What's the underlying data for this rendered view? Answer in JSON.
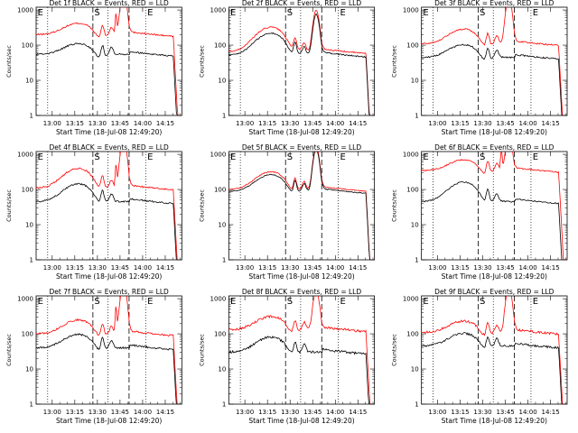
{
  "figure": {
    "xlabel_prefix": "Start Time",
    "start_time": "(18-Jul-08 12:49:20)",
    "ylabel": "Counts/sec"
  },
  "chart_data": [
    {
      "type": "line",
      "title": "Det 1f BLACK = Events, RED = LLD",
      "series": [
        {
          "name": "Events",
          "color": "#000000"
        },
        {
          "name": "LLD",
          "color": "#ff0000"
        }
      ],
      "profile": {
        "red_base": 200,
        "black_base": 55,
        "red_hump": 2.1,
        "black_hump": 2.0,
        "flare_red": 3000,
        "flare_black": null,
        "flare2_red": 600,
        "flare2_black": null,
        "noise": 0.05
      },
      "x_ticks": [
        "13:00",
        "13:15",
        "13:30",
        "13:45",
        "14:00",
        "14:15"
      ],
      "y_ticks": [
        "1",
        "10",
        "100",
        "1000"
      ],
      "xlim": [
        "12:49:20",
        "14:26"
      ],
      "ylim": [
        1,
        1200
      ],
      "ylog": true,
      "markers": {
        "dotted": [
          "12:57",
          "13:37",
          "14:02"
        ],
        "dashed": [
          "13:27",
          "13:51"
        ]
      },
      "marker_labels": [
        "E",
        "S",
        "E"
      ]
    },
    {
      "type": "line",
      "title": "Det 2f BLACK = Events, RED = LLD",
      "series": [
        {
          "name": "Events",
          "color": "#000000"
        },
        {
          "name": "LLD",
          "color": "#ff0000"
        }
      ],
      "profile": {
        "red_base": 65,
        "black_base": 52,
        "red_hump": 5.0,
        "black_hump": 4.2,
        "flare_red": 900,
        "flare_black": 700,
        "flare2_red": null,
        "flare2_black": null,
        "noise": 0.04
      },
      "x_ticks": [
        "13:00",
        "13:15",
        "13:30",
        "13:45",
        "14:00",
        "14:15"
      ],
      "y_ticks": [
        "1",
        "10",
        "100",
        "1000"
      ],
      "xlim": [
        "12:49:20",
        "14:26"
      ],
      "ylim": [
        1,
        1200
      ],
      "ylog": true,
      "markers": {
        "dotted": [
          "12:57",
          "13:37",
          "14:02"
        ],
        "dashed": [
          "13:27",
          "13:51"
        ]
      },
      "marker_labels": [
        "E",
        "S",
        "E"
      ]
    },
    {
      "type": "line",
      "title": "Det 3f BLACK = Events, RED = LLD",
      "series": [
        {
          "name": "Events",
          "color": "#000000"
        },
        {
          "name": "LLD",
          "color": "#ff0000"
        }
      ],
      "profile": {
        "red_base": 110,
        "black_base": 45,
        "red_hump": 2.6,
        "black_hump": 2.3,
        "flare_red": 2000,
        "flare_black": null,
        "flare2_red": null,
        "flare2_black": null,
        "noise": 0.05
      },
      "x_ticks": [
        "13:00",
        "13:15",
        "13:30",
        "13:45",
        "14:00",
        "14:15"
      ],
      "y_ticks": [
        "1",
        "10",
        "100",
        "1000"
      ],
      "xlim": [
        "12:49:20",
        "14:26"
      ],
      "ylim": [
        1,
        1200
      ],
      "ylog": true,
      "markers": {
        "dotted": [
          "12:57",
          "13:37",
          "14:02"
        ],
        "dashed": [
          "13:27",
          "13:51"
        ]
      },
      "marker_labels": [
        "E",
        "S",
        "E"
      ]
    },
    {
      "type": "line",
      "title": "Det 4f BLACK = Events, RED = LLD",
      "series": [
        {
          "name": "Events",
          "color": "#000000"
        },
        {
          "name": "LLD",
          "color": "#ff0000"
        }
      ],
      "profile": {
        "red_base": 110,
        "black_base": 45,
        "red_hump": 3.6,
        "black_hump": 3.2,
        "flare_red": 2500,
        "flare_black": null,
        "flare2_red": 400,
        "flare2_black": null,
        "noise": 0.05
      },
      "x_ticks": [
        "13:00",
        "13:15",
        "13:30",
        "13:45",
        "14:00",
        "14:15"
      ],
      "y_ticks": [
        "1",
        "10",
        "100",
        "1000"
      ],
      "xlim": [
        "12:49:20",
        "14:26"
      ],
      "ylim": [
        1,
        1200
      ],
      "ylog": true,
      "markers": {
        "dotted": [
          "12:57",
          "13:37",
          "14:02"
        ],
        "dashed": [
          "13:27",
          "13:51"
        ]
      },
      "marker_labels": [
        "E",
        "S",
        "E"
      ]
    },
    {
      "type": "line",
      "title": "Det 5f BLACK = Events, RED = LLD",
      "series": [
        {
          "name": "Events",
          "color": "#000000"
        },
        {
          "name": "LLD",
          "color": "#ff0000"
        }
      ],
      "profile": {
        "red_base": 100,
        "black_base": 88,
        "red_hump": 3.2,
        "black_hump": 3.0,
        "flare_red": 1500,
        "flare_black": 1300,
        "flare2_red": null,
        "flare2_black": null,
        "noise": 0.03
      },
      "x_ticks": [
        "13:00",
        "13:15",
        "13:30",
        "13:45",
        "14:00",
        "14:15"
      ],
      "y_ticks": [
        "1",
        "10",
        "100",
        "1000"
      ],
      "xlim": [
        "12:49:20",
        "14:26"
      ],
      "ylim": [
        1,
        1200
      ],
      "ylog": true,
      "markers": {
        "dotted": [
          "12:57",
          "13:37",
          "14:02"
        ],
        "dashed": [
          "13:27",
          "13:51"
        ]
      },
      "marker_labels": [
        "E",
        "S",
        "E"
      ]
    },
    {
      "type": "line",
      "title": "Det 6f BLACK = Events, RED = LLD",
      "series": [
        {
          "name": "Events",
          "color": "#000000"
        },
        {
          "name": "LLD",
          "color": "#ff0000"
        }
      ],
      "profile": {
        "red_base": 350,
        "black_base": 45,
        "red_hump": 2.0,
        "black_hump": 3.6,
        "flare_red": 3000,
        "flare_black": null,
        "flare2_red": 1000,
        "flare2_black": null,
        "noise": 0.04
      },
      "x_ticks": [
        "13:00",
        "13:15",
        "13:30",
        "13:45",
        "14:00",
        "14:15"
      ],
      "y_ticks": [
        "1",
        "10",
        "100",
        "1000"
      ],
      "xlim": [
        "12:49:20",
        "14:26"
      ],
      "ylim": [
        1,
        1200
      ],
      "ylog": true,
      "markers": {
        "dotted": [
          "12:57",
          "13:37",
          "14:02"
        ],
        "dashed": [
          "13:27",
          "13:51"
        ]
      },
      "marker_labels": [
        "E",
        "S",
        "E"
      ]
    },
    {
      "type": "line",
      "title": "Det 7f BLACK = Events, RED = LLD",
      "series": [
        {
          "name": "Events",
          "color": "#000000"
        },
        {
          "name": "LLD",
          "color": "#ff0000"
        }
      ],
      "profile": {
        "red_base": 100,
        "black_base": 40,
        "red_hump": 2.5,
        "black_hump": 2.4,
        "flare_red": 2500,
        "flare_black": null,
        "flare2_red": 500,
        "flare2_black": null,
        "noise": 0.06
      },
      "x_ticks": [
        "13:00",
        "13:15",
        "13:30",
        "13:45",
        "14:00",
        "14:15"
      ],
      "y_ticks": [
        "1",
        "10",
        "100",
        "1000"
      ],
      "xlim": [
        "12:49:20",
        "14:26"
      ],
      "ylim": [
        1,
        1200
      ],
      "ylog": true,
      "markers": {
        "dotted": [
          "12:57",
          "13:37",
          "14:02"
        ],
        "dashed": [
          "13:27",
          "13:51"
        ]
      },
      "marker_labels": [
        "E",
        "S",
        "E"
      ]
    },
    {
      "type": "line",
      "title": "Det 8f BLACK = Events, RED = LLD",
      "series": [
        {
          "name": "Events",
          "color": "#000000"
        },
        {
          "name": "LLD",
          "color": "#ff0000"
        }
      ],
      "profile": {
        "red_base": 130,
        "black_base": 30,
        "red_hump": 2.4,
        "black_hump": 2.7,
        "flare_red": 1500,
        "flare_black": null,
        "flare2_red": null,
        "flare2_black": null,
        "noise": 0.08
      },
      "x_ticks": [
        "13:00",
        "13:15",
        "13:30",
        "13:45",
        "14:00",
        "14:15"
      ],
      "y_ticks": [
        "1",
        "10",
        "100",
        "1000"
      ],
      "xlim": [
        "12:49:20",
        "14:26"
      ],
      "ylim": [
        1,
        1200
      ],
      "ylog": true,
      "markers": {
        "dotted": [
          "12:57",
          "13:37",
          "14:02"
        ],
        "dashed": [
          "13:27",
          "13:51"
        ]
      },
      "marker_labels": [
        "E",
        "S",
        "E"
      ]
    },
    {
      "type": "line",
      "title": "Det 9f BLACK = Events, RED = LLD",
      "series": [
        {
          "name": "Events",
          "color": "#000000"
        },
        {
          "name": "LLD",
          "color": "#ff0000"
        }
      ],
      "profile": {
        "red_base": 110,
        "black_base": 45,
        "red_hump": 2.1,
        "black_hump": 2.3,
        "flare_red": 2000,
        "flare_black": null,
        "flare2_red": null,
        "flare2_black": null,
        "noise": 0.07
      },
      "x_ticks": [
        "13:00",
        "13:15",
        "13:30",
        "13:45",
        "14:00",
        "14:15"
      ],
      "y_ticks": [
        "1",
        "10",
        "100",
        "1000"
      ],
      "xlim": [
        "12:49:20",
        "14:26"
      ],
      "ylim": [
        1,
        1200
      ],
      "ylog": true,
      "markers": {
        "dotted": [
          "12:57",
          "13:37",
          "14:02"
        ],
        "dashed": [
          "13:27",
          "13:51"
        ]
      },
      "marker_labels": [
        "E",
        "S",
        "E"
      ]
    }
  ]
}
